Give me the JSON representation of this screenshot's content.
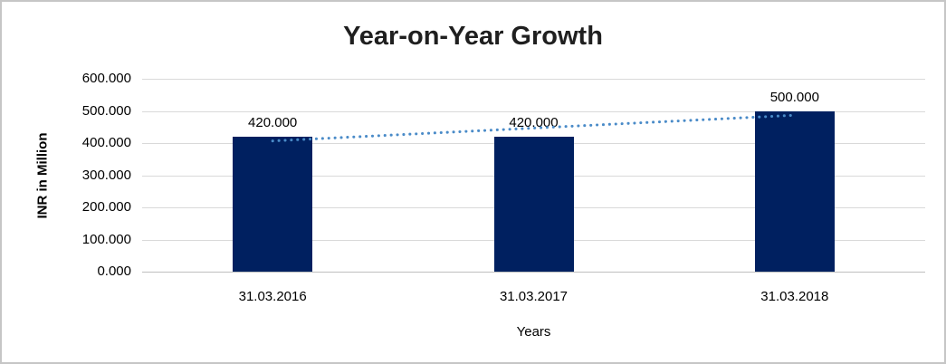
{
  "window": {
    "background": "#ffffff",
    "border_color": "#c6c6c6"
  },
  "chart_data": {
    "type": "bar",
    "title": "Year-on-Year Growth",
    "xlabel": "Years",
    "ylabel": "INR in Million",
    "categories": [
      "31.03.2016",
      "31.03.2017",
      "31.03.2018"
    ],
    "values": [
      420,
      420,
      500
    ],
    "data_labels": [
      "420.000",
      "420.000",
      "500.000"
    ],
    "y_ticks": [
      {
        "value": 600,
        "label": "600.000"
      },
      {
        "value": 500,
        "label": "500.000"
      },
      {
        "value": 400,
        "label": "400.000"
      },
      {
        "value": 300,
        "label": "300.000"
      },
      {
        "value": 200,
        "label": "200.000"
      },
      {
        "value": 100,
        "label": "100.000"
      },
      {
        "value": 0,
        "label": "0.000"
      }
    ],
    "ylim": [
      0,
      600
    ],
    "grid": true,
    "legend": false,
    "trendline": {
      "type": "linear",
      "show": true
    },
    "colors": {
      "bar": "#002060",
      "trendline": "#4a8bc8",
      "gridline": "#d9d9d9",
      "axis_line": "#bfbfbf",
      "text": "#000000"
    }
  }
}
